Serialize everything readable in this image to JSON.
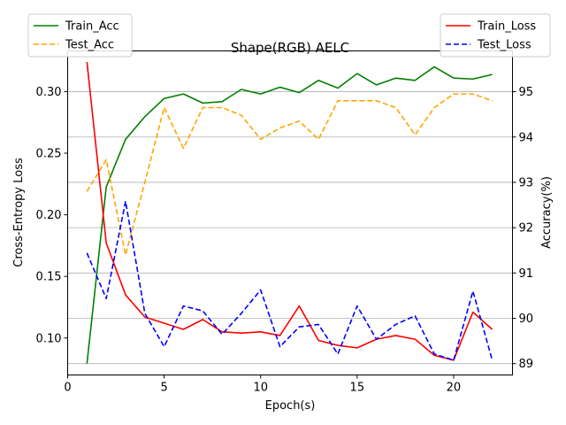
{
  "chart_data": {
    "type": "line",
    "title": "Shape(RGB) AELC",
    "xlabel": "Epoch(s)",
    "ylabel_left": "Cross-Entropy Loss",
    "ylabel_right": "Accuracy(%)",
    "xlim": [
      0,
      23.05
    ],
    "ylim_left": [
      0.07,
      0.333
    ],
    "ylim_right": [
      88.75,
      95.9
    ],
    "x_ticks": [
      0,
      5,
      10,
      15,
      20
    ],
    "y_ticks_left": [
      0.1,
      0.15,
      0.2,
      0.25,
      0.3
    ],
    "y_ticks_right": [
      89,
      90,
      91,
      92,
      93,
      94,
      95
    ],
    "grid": "horizontal lines at right-axis ticks",
    "x": [
      1,
      2,
      3,
      4,
      5,
      6,
      7,
      8,
      9,
      10,
      11,
      12,
      13,
      14,
      15,
      16,
      17,
      18,
      19,
      20,
      21,
      22
    ],
    "series_left": [
      {
        "name": "Train_Loss",
        "color": "#ff0000",
        "style": "solid",
        "values": [
          0.324,
          0.177,
          0.135,
          0.117,
          0.112,
          0.107,
          0.115,
          0.105,
          0.104,
          0.105,
          0.102,
          0.126,
          0.098,
          0.094,
          0.092,
          0.099,
          0.102,
          0.099,
          0.086,
          0.082,
          0.121,
          0.107
        ]
      },
      {
        "name": "Test_Loss",
        "color": "#0000ff",
        "style": "dashed",
        "values": [
          0.169,
          0.132,
          0.211,
          0.12,
          0.093,
          0.126,
          0.122,
          0.103,
          0.12,
          0.139,
          0.093,
          0.109,
          0.111,
          0.087,
          0.126,
          0.099,
          0.111,
          0.118,
          0.087,
          0.082,
          0.138,
          0.082
        ]
      }
    ],
    "series_right": [
      {
        "name": "Train_Acc",
        "color": "#008000",
        "style": "solid",
        "values": [
          89.0,
          92.9,
          93.95,
          94.45,
          94.85,
          94.95,
          94.75,
          94.78,
          95.05,
          94.95,
          95.1,
          94.98,
          95.25,
          95.08,
          95.4,
          95.15,
          95.3,
          95.25,
          95.55,
          95.3,
          95.28,
          95.38
        ]
      },
      {
        "name": "Test_Acc",
        "color": "#ffa500",
        "style": "dashed",
        "values": [
          92.8,
          93.5,
          91.4,
          93.0,
          94.65,
          93.75,
          94.65,
          94.65,
          94.48,
          93.95,
          94.2,
          94.35,
          93.95,
          94.8,
          94.8,
          94.8,
          94.65,
          94.05,
          94.65,
          94.95,
          94.95,
          94.8
        ]
      }
    ],
    "legend_left": {
      "placement": "top-left",
      "entries": [
        "Train_Acc",
        "Test_Acc"
      ]
    },
    "legend_right": {
      "placement": "top-right",
      "entries": [
        "Train_Loss",
        "Test_Loss"
      ]
    }
  }
}
